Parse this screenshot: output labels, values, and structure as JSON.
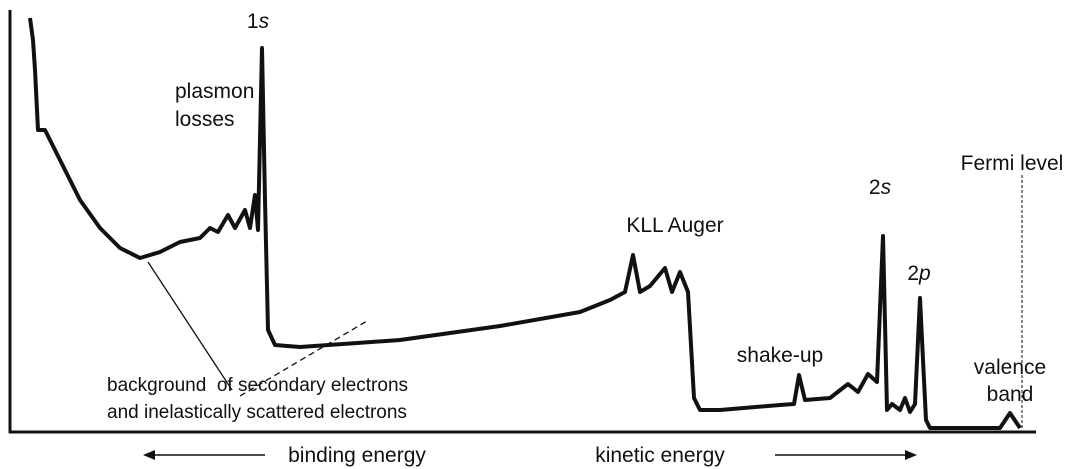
{
  "labels": {
    "peak_1s": {
      "number": "1",
      "orbital": "s"
    },
    "plasmon": [
      "plasmon",
      "losses"
    ],
    "auger": "KLL Auger",
    "peak_2s": {
      "number": "2",
      "orbital": "s"
    },
    "peak_2p": {
      "number": "2",
      "orbital": "p"
    },
    "fermi": "Fermi level",
    "shake_up": "shake-up",
    "valence": [
      "valence",
      "band"
    ],
    "background": [
      "background  of secondary electrons",
      "and inelastically scattered electrons"
    ],
    "binding": "binding energy",
    "kinetic": "kinetic energy"
  }
}
